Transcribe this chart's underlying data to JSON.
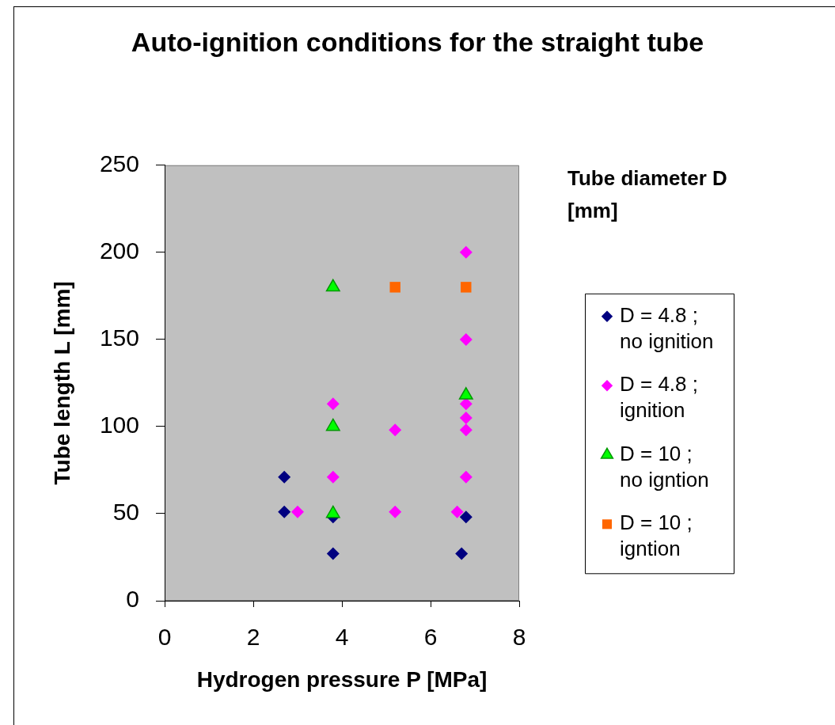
{
  "chart_data": {
    "type": "scatter",
    "title": "Auto-ignition conditions for the straight tube",
    "xlabel": "Hydrogen pressure P [MPa]",
    "ylabel": "Tube length L [mm]",
    "legend_title": "Tube diameter D [mm]",
    "legend": "right",
    "xlim": [
      0,
      8
    ],
    "xticks": [
      0,
      2,
      4,
      6,
      8
    ],
    "ylim": [
      0,
      250
    ],
    "yticks": [
      0,
      50,
      100,
      150,
      200,
      250
    ],
    "series": [
      {
        "name": "D = 4.8 ; no ignition",
        "color": "#000080",
        "marker": "diamond",
        "x": [
          2.7,
          2.7,
          3.8,
          3.8,
          6.8,
          6.7
        ],
        "values": [
          71,
          51,
          48,
          27,
          48,
          27
        ]
      },
      {
        "name": "D = 4.8 ; ignition",
        "color": "#ff00ff",
        "marker": "diamond",
        "x": [
          3.0,
          3.8,
          3.8,
          5.2,
          5.2,
          6.6,
          6.8,
          6.8,
          6.8,
          6.8,
          6.8,
          6.8
        ],
        "values": [
          51,
          71,
          113,
          98,
          51,
          51,
          200,
          150,
          113,
          105,
          98,
          71
        ]
      },
      {
        "name": "D = 10 ; no igntion",
        "color": "#00ff00",
        "marker": "triangle",
        "x": [
          3.8,
          3.8,
          3.8,
          6.8
        ],
        "values": [
          180,
          100,
          50,
          118
        ]
      },
      {
        "name": "D = 10 ; igntion",
        "color": "#ff6600",
        "marker": "square",
        "x": [
          5.2,
          6.8
        ],
        "values": [
          180,
          180
        ]
      }
    ]
  }
}
